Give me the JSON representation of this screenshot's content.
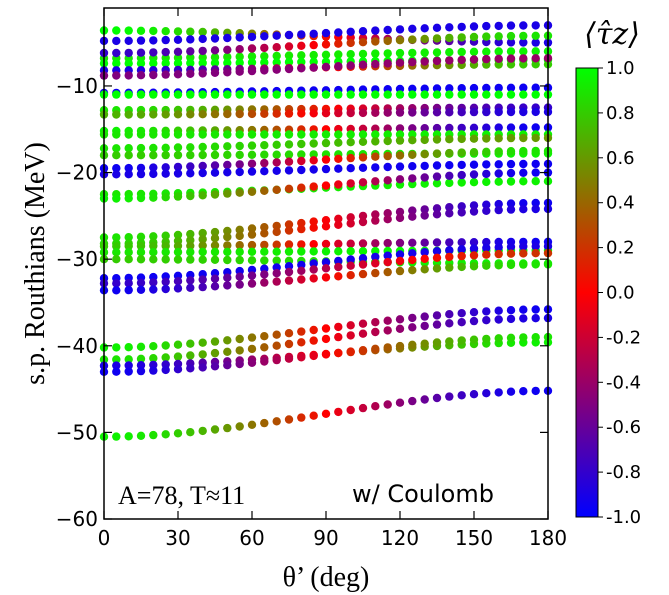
{
  "chart_data": {
    "type": "scatter",
    "xlabel": "θ’ (deg)",
    "ylabel": "s.p. Routhians (MeV)",
    "xlim": [
      0,
      180
    ],
    "ylim": [
      -60,
      -1
    ],
    "xticks": [
      0,
      30,
      60,
      90,
      120,
      150,
      180
    ],
    "xtick_labels": [
      "0",
      "30",
      "60",
      "90",
      "120",
      "150",
      "180"
    ],
    "yticks": [
      -60,
      -50,
      -40,
      -30,
      -20,
      -10
    ],
    "ytick_labels": [
      "−60",
      "−50",
      "−40",
      "−30",
      "−20",
      "−10"
    ],
    "x_step": 5,
    "annotations": [
      "A=78, T≈11",
      "w/ Coulomb"
    ],
    "colorbar": {
      "title": "⟨τ̂z⟩",
      "range": [
        -1.0,
        1.0
      ],
      "ticks": [
        "1.0",
        "0.8",
        "0.6",
        "0.4",
        "0.2",
        "0.0",
        "-0.2",
        "-0.4",
        "-0.6",
        "-0.8",
        "-1.0"
      ],
      "colors": {
        "low": "#0000ff",
        "mid": "#ff0000",
        "high": "#00ff00"
      }
    },
    "grid": false,
    "series": [
      {
        "y": [
          -3.6,
          -5.0
        ],
        "tz": [
          1.0,
          -0.9
        ],
        "shape": "s"
      },
      {
        "y": [
          -4.8,
          -3.0
        ],
        "tz": [
          -0.9,
          -0.9
        ],
        "shape": "s"
      },
      {
        "y": [
          -6.8,
          -6.0
        ],
        "tz": [
          0.9,
          0.95
        ],
        "shape": "s"
      },
      {
        "y": [
          -6.2,
          -4.2
        ],
        "tz": [
          -0.8,
          0.9
        ],
        "shape": "s"
      },
      {
        "y": [
          -7.4,
          -7.0
        ],
        "tz": [
          1.0,
          1.0
        ],
        "shape": "s"
      },
      {
        "y": [
          -8.2,
          -7.5
        ],
        "tz": [
          -0.9,
          0.8
        ],
        "shape": "s"
      },
      {
        "y": [
          -8.8,
          -6.8
        ],
        "tz": [
          -0.5,
          -0.4
        ],
        "shape": "s"
      },
      {
        "y": [
          -10.8,
          -10.2
        ],
        "tz": [
          -0.95,
          -0.95
        ],
        "shape": "s"
      },
      {
        "y": [
          -11.0,
          -11.0
        ],
        "tz": [
          1.0,
          1.0
        ],
        "shape": "s"
      },
      {
        "y": [
          -12.8,
          -12.5
        ],
        "tz": [
          0.9,
          -0.8
        ],
        "shape": "s"
      },
      {
        "y": [
          -13.3,
          -13.0
        ],
        "tz": [
          0.7,
          -0.9
        ],
        "shape": "s"
      },
      {
        "y": [
          -15.2,
          -14.8
        ],
        "tz": [
          0.95,
          -0.95
        ],
        "shape": "s"
      },
      {
        "y": [
          -15.6,
          -15.6
        ],
        "tz": [
          0.9,
          0.95
        ],
        "shape": "s"
      },
      {
        "y": [
          -17.2,
          -16.0
        ],
        "tz": [
          0.9,
          0.6
        ],
        "shape": "s"
      },
      {
        "y": [
          -18.0,
          -17.8
        ],
        "tz": [
          0.8,
          0.95
        ],
        "shape": "s"
      },
      {
        "y": [
          -19.5,
          -17.5
        ],
        "tz": [
          -0.95,
          0.9
        ],
        "shape": "s"
      },
      {
        "y": [
          -20.2,
          -19.0
        ],
        "tz": [
          -0.9,
          -0.95
        ],
        "shape": "s"
      },
      {
        "y": [
          -22.5,
          -21.0
        ],
        "tz": [
          0.9,
          0.95
        ],
        "shape": "s"
      },
      {
        "y": [
          -23.0,
          -20.0
        ],
        "tz": [
          0.95,
          -0.95
        ],
        "shape": "s"
      },
      {
        "y": [
          -27.5,
          -23.5
        ],
        "tz": [
          0.9,
          -0.95
        ],
        "shape": "s"
      },
      {
        "y": [
          -28.2,
          -24.2
        ],
        "tz": [
          0.85,
          -0.9
        ],
        "shape": "s"
      },
      {
        "y": [
          -28.5,
          -28.0
        ],
        "tz": [
          0.8,
          -0.95
        ],
        "shape": "s"
      },
      {
        "y": [
          -29.2,
          -29.0
        ],
        "tz": [
          0.9,
          1.0
        ],
        "shape": "s"
      },
      {
        "y": [
          -30.0,
          -30.5
        ],
        "tz": [
          0.8,
          0.95
        ],
        "shape": "s"
      },
      {
        "y": [
          -32.2,
          -28.5
        ],
        "tz": [
          -0.95,
          -0.9
        ],
        "shape": "s"
      },
      {
        "y": [
          -32.8,
          -29.3
        ],
        "tz": [
          -0.8,
          0.2
        ],
        "shape": "s"
      },
      {
        "y": [
          -33.6,
          -30.6
        ],
        "tz": [
          -0.95,
          0.9
        ],
        "shape": "s"
      },
      {
        "y": [
          -40.2,
          -35.8
        ],
        "tz": [
          0.95,
          -0.95
        ],
        "shape": "s"
      },
      {
        "y": [
          -41.6,
          -36.8
        ],
        "tz": [
          0.9,
          -0.9
        ],
        "shape": "s"
      },
      {
        "y": [
          -42.3,
          -39.6
        ],
        "tz": [
          -0.9,
          0.95
        ],
        "shape": "s"
      },
      {
        "y": [
          -43.0,
          -39.0
        ],
        "tz": [
          -0.95,
          0.9
        ],
        "shape": "s"
      },
      {
        "y": [
          -50.5,
          -45.2
        ],
        "tz": [
          0.95,
          -0.95
        ],
        "shape": "s"
      }
    ]
  }
}
